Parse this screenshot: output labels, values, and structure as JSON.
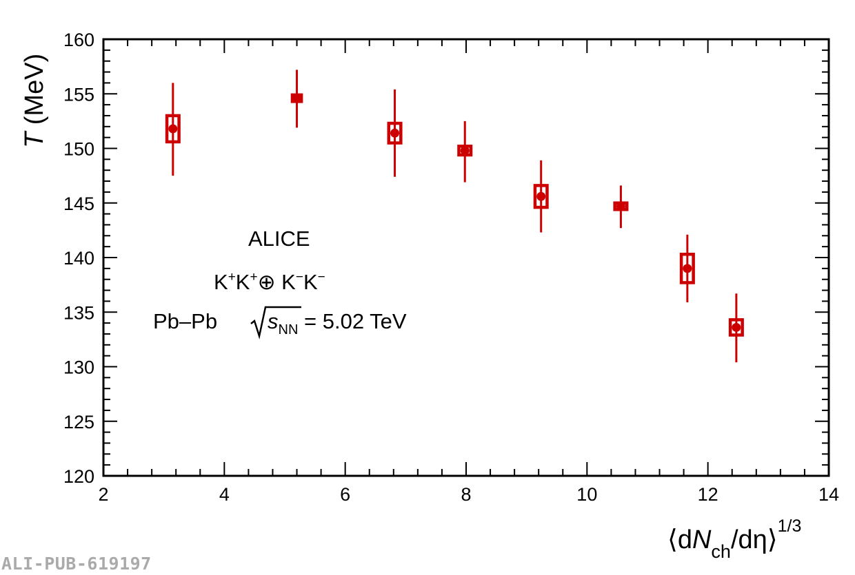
{
  "chart_data": {
    "type": "scatter",
    "xlabel": {
      "open": "⟨d",
      "n": "N",
      "sub": "ch",
      "rest": "/dη⟩",
      "sup": "1/3"
    },
    "ylabel": {
      "var": "T",
      "unit": "(MeV)"
    },
    "xlim": [
      2,
      14
    ],
    "ylim": [
      120,
      160
    ],
    "x_ticks": [
      2,
      4,
      6,
      8,
      10,
      12,
      14
    ],
    "y_ticks": [
      120,
      125,
      130,
      135,
      140,
      145,
      150,
      155,
      160
    ],
    "grid": false,
    "marker_color": "#cc0000",
    "points": [
      {
        "x": 3.15,
        "y": 151.8,
        "stat_low": 4.3,
        "stat_high": 4.2,
        "sys": 1.2,
        "box_w": 0.2
      },
      {
        "x": 5.2,
        "y": 154.6,
        "stat_low": 2.7,
        "stat_high": 2.6,
        "sys": 0.3,
        "box_w": 0.15
      },
      {
        "x": 6.82,
        "y": 151.4,
        "stat_low": 4.0,
        "stat_high": 4.0,
        "sys": 0.9,
        "box_w": 0.2
      },
      {
        "x": 7.98,
        "y": 149.8,
        "stat_low": 2.9,
        "stat_high": 2.7,
        "sys": 0.4,
        "box_w": 0.2
      },
      {
        "x": 9.24,
        "y": 145.6,
        "stat_low": 3.3,
        "stat_high": 3.3,
        "sys": 1.0,
        "box_w": 0.2
      },
      {
        "x": 10.56,
        "y": 144.7,
        "stat_low": 2.0,
        "stat_high": 1.9,
        "sys": 0.3,
        "box_w": 0.2
      },
      {
        "x": 11.66,
        "y": 139.0,
        "stat_low": 3.1,
        "stat_high": 3.1,
        "sys": 1.3,
        "box_w": 0.2
      },
      {
        "x": 12.47,
        "y": 133.6,
        "stat_low": 3.2,
        "stat_high": 3.1,
        "sys": 0.7,
        "box_w": 0.2
      }
    ],
    "annotations": {
      "experiment": "ALICE",
      "pairs": {
        "a": "K",
        "a_sup1": "+",
        "b": "K",
        "b_sup1": "+",
        "op": "⊕ K",
        "op_sup": "−",
        "c": "K",
        "c_sup": "−"
      },
      "system": "Pb–Pb",
      "energy_s": "s",
      "energy_sub": "NN",
      "energy_value": " = 5.02 TeV"
    }
  },
  "footer": {
    "pub_id": "ALI-PUB-619197"
  }
}
